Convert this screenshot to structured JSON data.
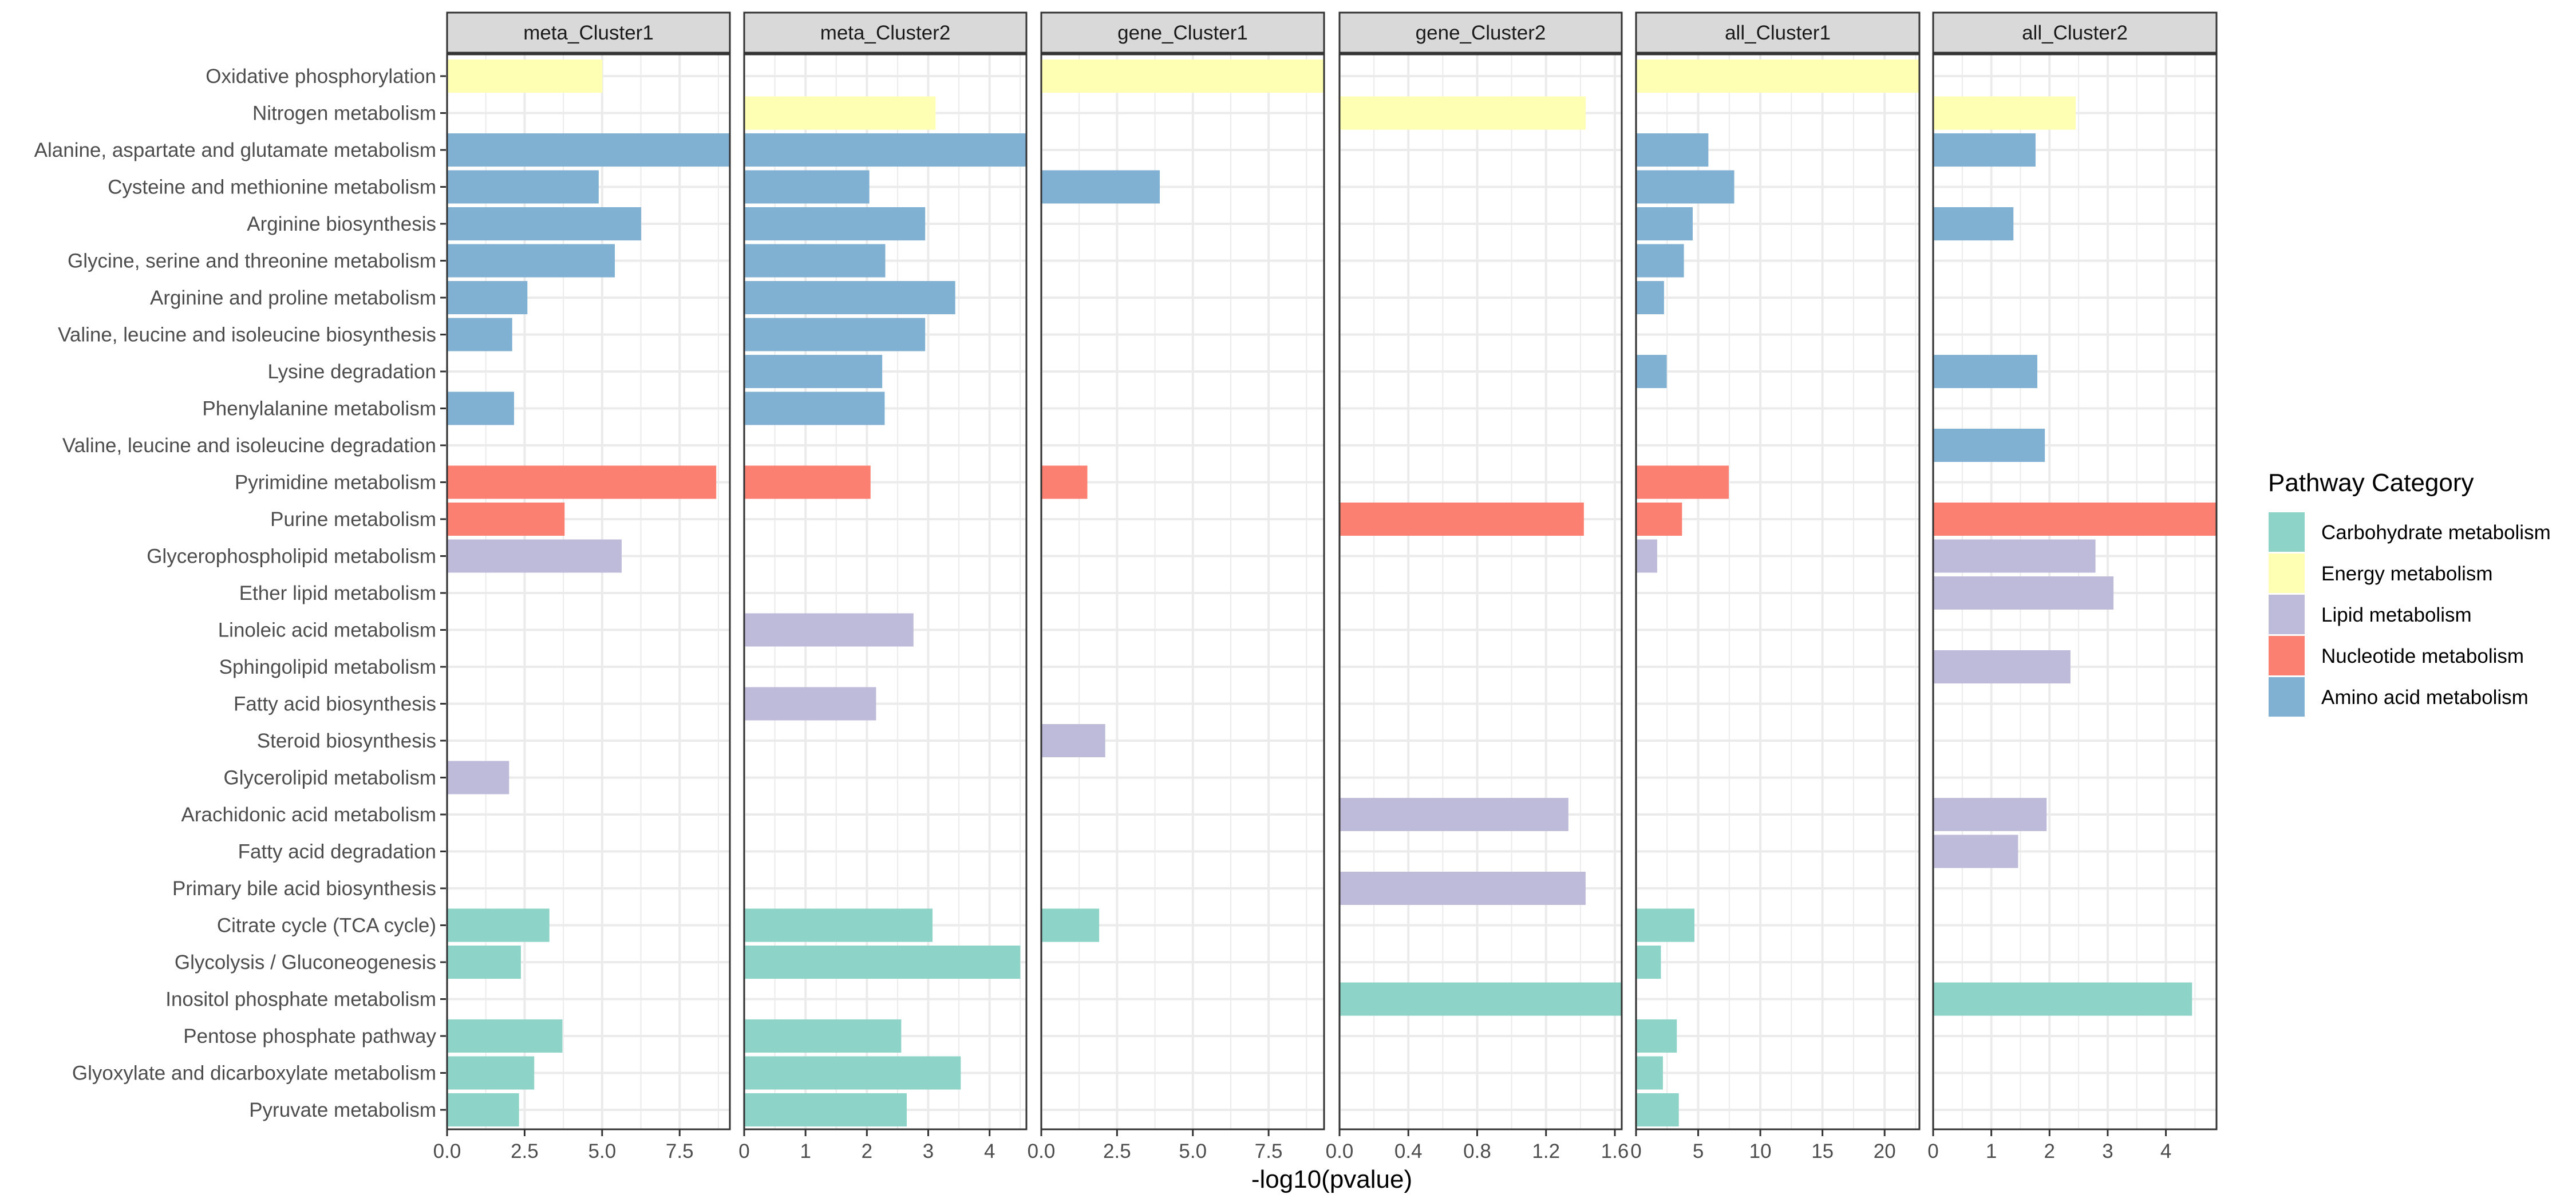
{
  "chart_data": {
    "type": "bar",
    "orientation": "horizontal",
    "xlabel": "-log10(pvalue)",
    "ylabel": "",
    "grid": true,
    "legend": {
      "title": "Pathway Category",
      "position": "right",
      "entries": [
        {
          "name": "Carbohydrate metabolism",
          "color": "#8DD3C7"
        },
        {
          "name": "Energy metabolism",
          "color": "#FFFFB3"
        },
        {
          "name": "Lipid metabolism",
          "color": "#BEBADA"
        },
        {
          "name": "Nucleotide metabolism",
          "color": "#FB8072"
        },
        {
          "name": "Amino acid metabolism",
          "color": "#80B1D3"
        }
      ]
    },
    "categories": [
      {
        "name": "Oxidative phosphorylation",
        "category": "Energy metabolism"
      },
      {
        "name": "Nitrogen metabolism",
        "category": "Energy metabolism"
      },
      {
        "name": "Alanine, aspartate and glutamate metabolism",
        "category": "Amino acid metabolism"
      },
      {
        "name": "Cysteine and methionine metabolism",
        "category": "Amino acid metabolism"
      },
      {
        "name": "Arginine biosynthesis",
        "category": "Amino acid metabolism"
      },
      {
        "name": "Glycine, serine and threonine metabolism",
        "category": "Amino acid metabolism"
      },
      {
        "name": "Arginine and proline metabolism",
        "category": "Amino acid metabolism"
      },
      {
        "name": "Valine, leucine and isoleucine biosynthesis",
        "category": "Amino acid metabolism"
      },
      {
        "name": "Lysine degradation",
        "category": "Amino acid metabolism"
      },
      {
        "name": "Phenylalanine metabolism",
        "category": "Amino acid metabolism"
      },
      {
        "name": "Valine, leucine and isoleucine degradation",
        "category": "Amino acid metabolism"
      },
      {
        "name": "Pyrimidine metabolism",
        "category": "Nucleotide metabolism"
      },
      {
        "name": "Purine metabolism",
        "category": "Nucleotide metabolism"
      },
      {
        "name": "Glycerophospholipid metabolism",
        "category": "Lipid metabolism"
      },
      {
        "name": "Ether lipid metabolism",
        "category": "Lipid metabolism"
      },
      {
        "name": "Linoleic acid metabolism",
        "category": "Lipid metabolism"
      },
      {
        "name": "Sphingolipid metabolism",
        "category": "Lipid metabolism"
      },
      {
        "name": "Fatty acid biosynthesis",
        "category": "Lipid metabolism"
      },
      {
        "name": "Steroid biosynthesis",
        "category": "Lipid metabolism"
      },
      {
        "name": "Glycerolipid metabolism",
        "category": "Lipid metabolism"
      },
      {
        "name": "Arachidonic acid metabolism",
        "category": "Lipid metabolism"
      },
      {
        "name": "Fatty acid degradation",
        "category": "Lipid metabolism"
      },
      {
        "name": "Primary bile acid biosynthesis",
        "category": "Lipid metabolism"
      },
      {
        "name": "Citrate cycle (TCA cycle)",
        "category": "Carbohydrate metabolism"
      },
      {
        "name": "Glycolysis / Gluconeogenesis",
        "category": "Carbohydrate metabolism"
      },
      {
        "name": "Inositol phosphate metabolism",
        "category": "Carbohydrate metabolism"
      },
      {
        "name": "Pentose phosphate pathway",
        "category": "Carbohydrate metabolism"
      },
      {
        "name": "Glyoxylate and dicarboxylate metabolism",
        "category": "Carbohydrate metabolism"
      },
      {
        "name": "Pyruvate metabolism",
        "category": "Carbohydrate metabolism"
      }
    ],
    "panels": [
      {
        "title": "meta_Cluster1",
        "xlim": [
          0,
          9.12
        ],
        "ticks": [
          0,
          2.5,
          5,
          7.5
        ],
        "tick_labels": [
          "0.0",
          "2.5",
          "5.0",
          "7.5"
        ],
        "values": [
          5.01,
          null,
          9.12,
          4.89,
          6.26,
          5.41,
          2.59,
          2.1,
          null,
          2.16,
          null,
          8.68,
          3.79,
          5.63,
          null,
          null,
          null,
          null,
          null,
          2.0,
          null,
          null,
          null,
          3.3,
          2.38,
          null,
          3.72,
          2.81,
          2.32
        ]
      },
      {
        "title": "meta_Cluster2",
        "xlim": [
          0,
          4.6
        ],
        "ticks": [
          0,
          1,
          2,
          3,
          4
        ],
        "tick_labels": [
          "0",
          "1",
          "2",
          "3",
          "4"
        ],
        "values": [
          null,
          3.12,
          4.6,
          2.04,
          2.95,
          2.3,
          3.44,
          2.95,
          2.25,
          2.29,
          null,
          2.06,
          null,
          null,
          null,
          2.76,
          null,
          2.15,
          null,
          null,
          null,
          null,
          null,
          3.07,
          4.5,
          null,
          2.56,
          3.53,
          2.65
        ]
      },
      {
        "title": "gene_Cluster1",
        "xlim": [
          0,
          9.33
        ],
        "ticks": [
          0,
          2.5,
          5,
          7.5
        ],
        "tick_labels": [
          "0.0",
          "2.5",
          "5.0",
          "7.5"
        ],
        "values": [
          9.33,
          null,
          null,
          3.91,
          null,
          null,
          null,
          null,
          null,
          null,
          null,
          1.52,
          null,
          null,
          null,
          null,
          null,
          null,
          2.11,
          null,
          null,
          null,
          null,
          1.91,
          null,
          null,
          null,
          null,
          null
        ]
      },
      {
        "title": "gene_Cluster2",
        "xlim": [
          0,
          1.64
        ],
        "ticks": [
          0,
          0.4,
          0.8,
          1.2,
          1.6
        ],
        "tick_labels": [
          "0.0",
          "0.4",
          "0.8",
          "1.2",
          "1.6"
        ],
        "values": [
          null,
          1.43,
          null,
          null,
          null,
          null,
          null,
          null,
          null,
          null,
          null,
          null,
          1.42,
          null,
          null,
          null,
          null,
          null,
          null,
          null,
          1.33,
          null,
          1.43,
          null,
          null,
          1.64,
          null,
          null,
          null
        ]
      },
      {
        "title": "all_Cluster1",
        "xlim": [
          0,
          22.8
        ],
        "ticks": [
          0,
          5,
          10,
          15,
          20
        ],
        "tick_labels": [
          "0",
          "5",
          "10",
          "15",
          "20"
        ],
        "values": [
          22.8,
          null,
          5.82,
          7.9,
          4.56,
          3.85,
          2.25,
          null,
          2.47,
          null,
          null,
          7.46,
          3.7,
          1.7,
          null,
          null,
          null,
          null,
          null,
          null,
          null,
          null,
          null,
          4.7,
          2.0,
          null,
          3.28,
          2.16,
          3.44
        ]
      },
      {
        "title": "all_Cluster2",
        "xlim": [
          0,
          4.87
        ],
        "ticks": [
          0,
          1,
          2,
          3,
          4
        ],
        "tick_labels": [
          "0",
          "1",
          "2",
          "3",
          "4"
        ],
        "values": [
          null,
          2.45,
          1.76,
          null,
          1.38,
          null,
          null,
          null,
          1.79,
          null,
          1.92,
          null,
          4.87,
          2.79,
          3.1,
          null,
          2.36,
          null,
          null,
          null,
          1.95,
          1.46,
          null,
          null,
          null,
          4.45,
          null,
          null,
          null
        ]
      }
    ]
  }
}
